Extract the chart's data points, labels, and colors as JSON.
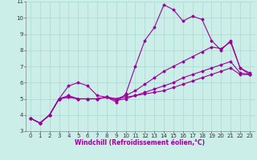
{
  "xlabel": "Windchill (Refroidissement éolien,°C)",
  "ylabel": "",
  "xlim": [
    -0.5,
    23.5
  ],
  "ylim": [
    3,
    11
  ],
  "xticks": [
    0,
    1,
    2,
    3,
    4,
    5,
    6,
    7,
    8,
    9,
    10,
    11,
    12,
    13,
    14,
    15,
    16,
    17,
    18,
    19,
    20,
    21,
    22,
    23
  ],
  "yticks": [
    3,
    4,
    5,
    6,
    7,
    8,
    9,
    10,
    11
  ],
  "bg_color": "#cceee8",
  "grid_color": "#aad8d2",
  "line_color": "#990099",
  "lines": [
    {
      "x": [
        0,
        1,
        2,
        3,
        4,
        5,
        6,
        7,
        8,
        9,
        10,
        11,
        12,
        13,
        14,
        15,
        16,
        17,
        18,
        19,
        20,
        21,
        22,
        23
      ],
      "y": [
        3.8,
        3.5,
        4.0,
        5.0,
        5.8,
        6.0,
        5.8,
        5.2,
        5.1,
        4.8,
        5.3,
        7.0,
        8.6,
        9.4,
        10.8,
        10.5,
        9.8,
        10.1,
        9.9,
        8.6,
        8.0,
        8.6,
        6.9,
        6.6
      ]
    },
    {
      "x": [
        0,
        1,
        2,
        3,
        4,
        5,
        6,
        7,
        8,
        9,
        10,
        11,
        12,
        13,
        14,
        15,
        16,
        17,
        18,
        19,
        20,
        21,
        22,
        23
      ],
      "y": [
        3.8,
        3.5,
        4.0,
        5.0,
        5.2,
        5.0,
        5.0,
        5.0,
        5.1,
        5.0,
        5.1,
        5.2,
        5.3,
        5.4,
        5.5,
        5.7,
        5.9,
        6.1,
        6.3,
        6.5,
        6.7,
        6.9,
        6.5,
        6.5
      ]
    },
    {
      "x": [
        0,
        1,
        2,
        3,
        4,
        5,
        6,
        7,
        8,
        9,
        10,
        11,
        12,
        13,
        14,
        15,
        16,
        17,
        18,
        19,
        20,
        21,
        22,
        23
      ],
      "y": [
        3.8,
        3.5,
        4.0,
        5.0,
        5.1,
        5.0,
        5.0,
        5.0,
        5.1,
        4.9,
        5.0,
        5.2,
        5.4,
        5.6,
        5.8,
        6.0,
        6.3,
        6.5,
        6.7,
        6.9,
        7.1,
        7.3,
        6.6,
        6.5
      ]
    },
    {
      "x": [
        0,
        1,
        2,
        3,
        4,
        5,
        6,
        7,
        8,
        9,
        10,
        11,
        12,
        13,
        14,
        15,
        16,
        17,
        18,
        19,
        20,
        21,
        22,
        23
      ],
      "y": [
        3.8,
        3.5,
        4.0,
        5.0,
        5.1,
        5.0,
        5.0,
        5.0,
        5.1,
        5.0,
        5.2,
        5.5,
        5.9,
        6.3,
        6.7,
        7.0,
        7.3,
        7.6,
        7.9,
        8.2,
        8.1,
        8.5,
        6.9,
        6.5
      ]
    }
  ],
  "xlabel_fontsize": 5.5,
  "tick_fontsize": 5.0,
  "xlabel_color": "#990099"
}
